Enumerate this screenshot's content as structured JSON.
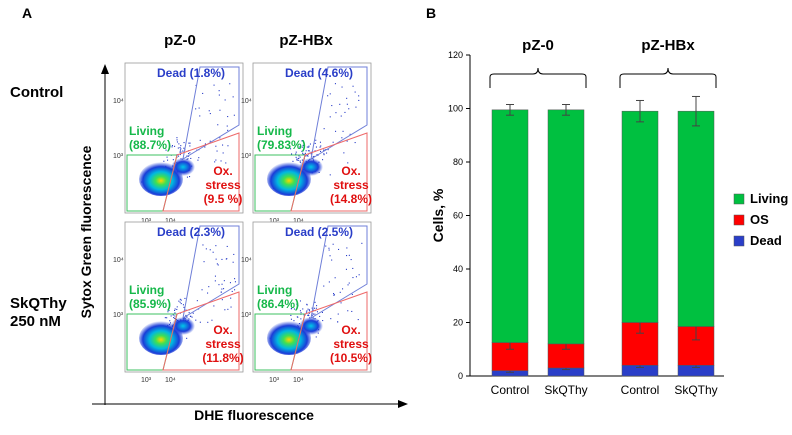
{
  "panel_a": {
    "letter": "A",
    "columns": [
      "pZ-0",
      "pZ-HBx"
    ],
    "rows": [
      "Control",
      "SkQThy 250 nM"
    ],
    "y_axis_label": "Sytox Green fluorescence",
    "x_axis_label": "DHE fluorescence",
    "tick_labels": [
      "10³",
      "10⁴"
    ],
    "plots": [
      {
        "dead": "Dead (1.8%)",
        "living_1": "Living",
        "living_2": "(88.7%)",
        "ox_1": "Ox.",
        "ox_2": "stress",
        "ox_3": "(9.5 %)"
      },
      {
        "dead": "Dead (4.6%)",
        "living_1": "Living",
        "living_2": "(79.83%)",
        "ox_1": "Ox.",
        "ox_2": "stress",
        "ox_3": "(14.8%)"
      },
      {
        "dead": "Dead (2.3%)",
        "living_1": "Living",
        "living_2": "(85.9%)",
        "ox_1": "Ox.",
        "ox_2": "stress",
        "ox_3": "(11.8%)"
      },
      {
        "dead": "Dead (2.5%)",
        "living_1": "Living",
        "living_2": "(86.4%)",
        "ox_1": "Ox.",
        "ox_2": "stress",
        "ox_3": "(10.5%)"
      }
    ]
  },
  "chart_data": {
    "type": "bar",
    "stacked": true,
    "panel_letter": "B",
    "group_labels": [
      "pZ-0",
      "pZ-HBx"
    ],
    "categories": [
      "Control",
      "SkQThy",
      "Control",
      "SkQThy"
    ],
    "ylabel": "Cells, %",
    "xlabel": "",
    "ylim": [
      0,
      120
    ],
    "yticks": [
      0,
      20,
      40,
      60,
      80,
      100,
      120
    ],
    "grid": false,
    "legend_position": "right",
    "series": [
      {
        "name": "Dead",
        "color": "#2a3ec8",
        "values": [
          2,
          3,
          4,
          4
        ],
        "errors": [
          0.6,
          0.6,
          0.8,
          0.8
        ]
      },
      {
        "name": "OS",
        "color": "#ff0000",
        "values": [
          10.5,
          9,
          16,
          14.5
        ],
        "errors": [
          2.5,
          2,
          4,
          5
        ]
      },
      {
        "name": "Living",
        "color": "#00c040",
        "values": [
          87,
          87.5,
          79,
          80.5
        ],
        "errors": [
          2,
          2,
          4,
          5.5
        ]
      }
    ],
    "legend_order": [
      "Living",
      "OS",
      "Dead"
    ]
  }
}
